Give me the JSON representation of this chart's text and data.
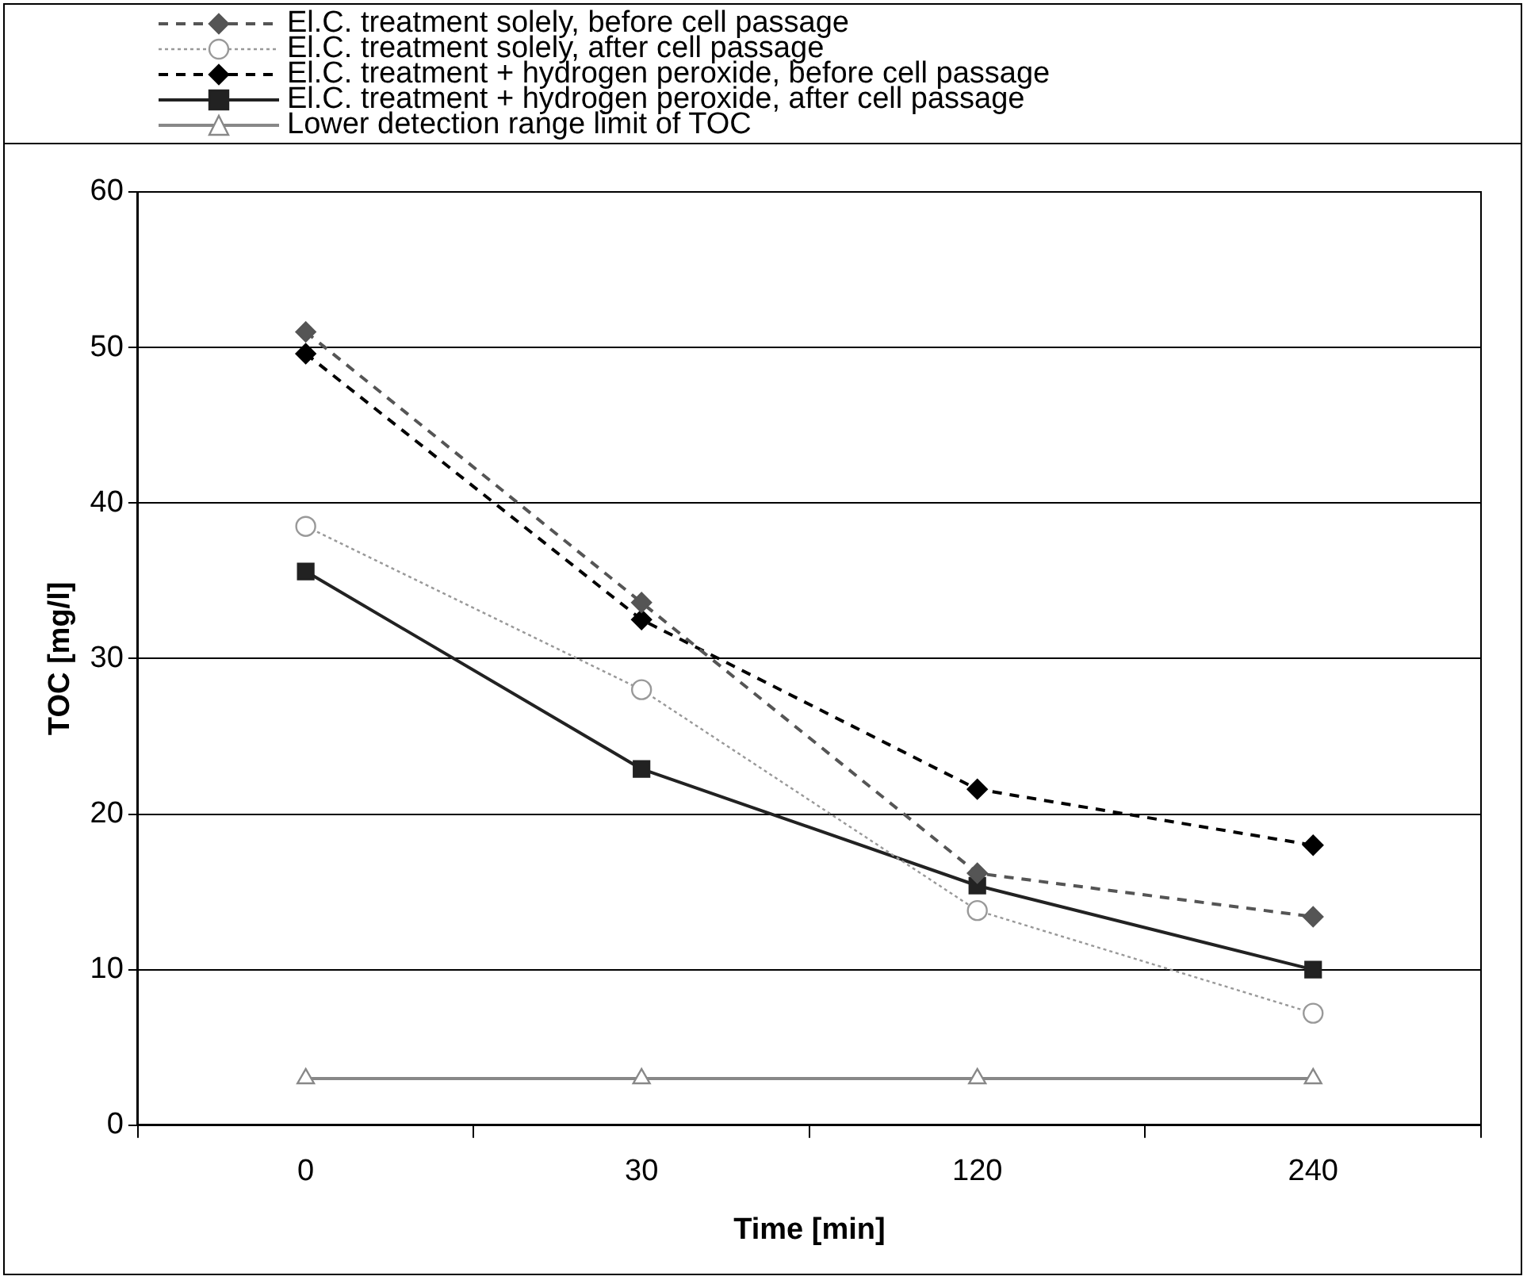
{
  "chart_data": {
    "type": "line",
    "xlabel": "Time [min]",
    "ylabel": "TOC [mg/l]",
    "categories": [
      "0",
      "30",
      "120",
      "240"
    ],
    "ylim": [
      0,
      60
    ],
    "yticks": [
      0,
      10,
      20,
      30,
      40,
      50,
      60
    ],
    "grid": "y",
    "legend": "top",
    "series": [
      {
        "name": "El.C. treatment solely, before cell passage",
        "color": "#555555",
        "marker": "diamond",
        "line_style": "dashed",
        "values": [
          51,
          33.6,
          16.2,
          13.4
        ]
      },
      {
        "name": "El.C. treatment solely, after cell passage",
        "color": "#999999",
        "marker": "circle",
        "line_style": "dotted",
        "values": [
          38.5,
          28,
          13.8,
          7.2
        ]
      },
      {
        "name": "El.C. treatment + hydrogen peroxide, before cell passage",
        "color": "#000000",
        "marker": "diamond",
        "line_style": "dashed",
        "values": [
          49.6,
          32.5,
          21.6,
          18
        ]
      },
      {
        "name": "El.C. treatment + hydrogen peroxide, after cell passage",
        "color": "#222222",
        "marker": "square",
        "line_style": "solid",
        "values": [
          35.6,
          22.9,
          15.4,
          10
        ]
      },
      {
        "name": "Lower detection range limit of TOC",
        "color": "#888888",
        "marker": "triangle",
        "line_style": "solid",
        "values": [
          3,
          3,
          3,
          3
        ]
      }
    ]
  }
}
